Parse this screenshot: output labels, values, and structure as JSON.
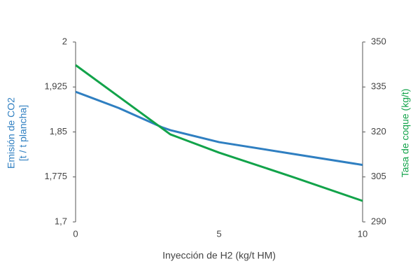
{
  "chart_data": {
    "type": "line",
    "x": [
      0,
      1.5,
      3,
      3.3,
      5,
      7.5,
      10
    ],
    "series": [
      {
        "name": "Emisión de CO2",
        "color": "#2f7fc1",
        "values": [
          1.917,
          1.89,
          1.858,
          1.853,
          1.833,
          1.814,
          1.795
        ]
      },
      {
        "name": "Tasa de coque (kg/t)",
        "color": "#12a34a",
        "axis": "y2",
        "values": [
          342.3,
          331.8,
          321.3,
          319.2,
          313.1,
          305.2,
          297
        ]
      }
    ],
    "x_label": "Inyección de H2 (kg/t HM)",
    "y_label": [
      "Emisión de CO2",
      "[t / t plancha]"
    ],
    "y2_label": "Tasa de coque (kg/t)",
    "xlim": [
      0,
      10
    ],
    "xticks": [
      0,
      5,
      10
    ],
    "ylim": [
      1.7,
      2
    ],
    "yticks": [
      {
        "value": 1.7,
        "label": "1,7"
      },
      {
        "value": 1.775,
        "label": "1,775"
      },
      {
        "value": 1.85,
        "label": "1,85"
      },
      {
        "value": 1.925,
        "label": "1,925"
      },
      2
    ],
    "y2lim": [
      290,
      350
    ],
    "y2ticks": [
      290,
      305,
      320,
      335,
      350
    ],
    "grid": false
  }
}
